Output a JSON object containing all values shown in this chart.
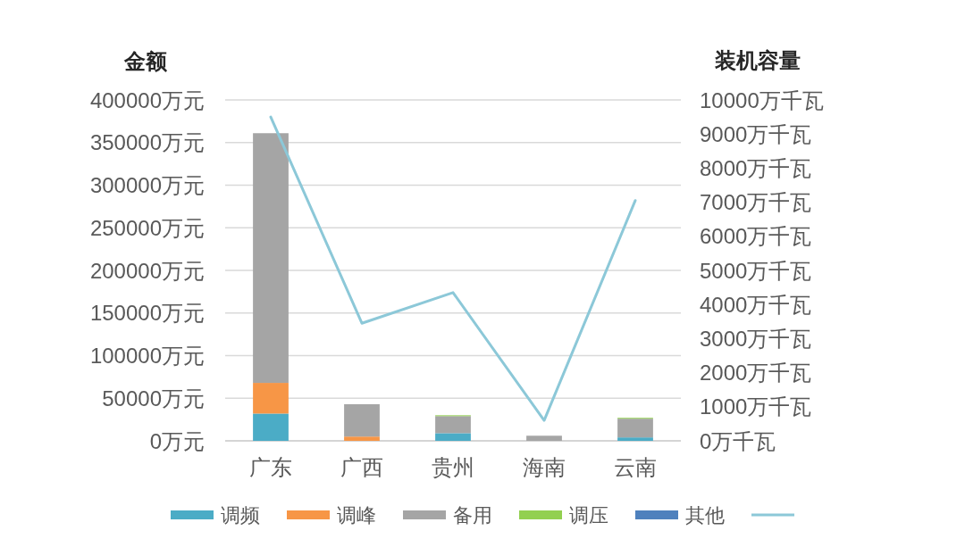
{
  "chart_data": {
    "type": "bar",
    "stacked": true,
    "ylabel": "金额",
    "y2label": "装机容量",
    "categories": [
      "广东",
      "广西",
      "贵州",
      "海南",
      "云南"
    ],
    "series": [
      {
        "name": "调频",
        "color": "#4bacc6",
        "values": [
          32000,
          0,
          9000,
          0,
          4000
        ]
      },
      {
        "name": "调峰",
        "color": "#f79646",
        "values": [
          36000,
          5000,
          0,
          0,
          0
        ]
      },
      {
        "name": "备用",
        "color": "#a5a5a5",
        "values": [
          293000,
          38000,
          20000,
          6000,
          22000
        ]
      },
      {
        "name": "调压",
        "color": "#92d050",
        "values": [
          0,
          0,
          1000,
          0,
          1000
        ]
      },
      {
        "name": "其他",
        "color": "#4f81bd",
        "values": [
          0,
          0,
          0,
          0,
          0
        ]
      },
      {
        "type": "line",
        "axis": "y2",
        "color": "#8cc8d8",
        "values": [
          9500,
          3450,
          4350,
          600,
          7050
        ]
      }
    ],
    "ylim": [
      0,
      400000
    ],
    "yticks": [
      {
        "value": 0,
        "label": "0万元"
      },
      {
        "value": 50000,
        "label": "50000万元"
      },
      {
        "value": 100000,
        "label": "100000万元"
      },
      {
        "value": 150000,
        "label": "150000万元"
      },
      {
        "value": 200000,
        "label": "200000万元"
      },
      {
        "value": 250000,
        "label": "250000万元"
      },
      {
        "value": 300000,
        "label": "300000万元"
      },
      {
        "value": 350000,
        "label": "350000万元"
      },
      {
        "value": 400000,
        "label": "400000万元"
      }
    ],
    "y2lim": [
      0,
      10000
    ],
    "y2ticks": [
      {
        "value": 0,
        "label": "0万千瓦"
      },
      {
        "value": 1000,
        "label": "1000万千瓦"
      },
      {
        "value": 2000,
        "label": "2000万千瓦"
      },
      {
        "value": 3000,
        "label": "3000万千瓦"
      },
      {
        "value": 4000,
        "label": "4000万千瓦"
      },
      {
        "value": 5000,
        "label": "5000万千瓦"
      },
      {
        "value": 6000,
        "label": "6000万千瓦"
      },
      {
        "value": 7000,
        "label": "7000万千瓦"
      },
      {
        "value": 8000,
        "label": "8000万千瓦"
      },
      {
        "value": 9000,
        "label": "9000万千瓦"
      },
      {
        "value": 10000,
        "label": "10000万千瓦"
      }
    ],
    "grid": "y",
    "legend": "bottom"
  }
}
